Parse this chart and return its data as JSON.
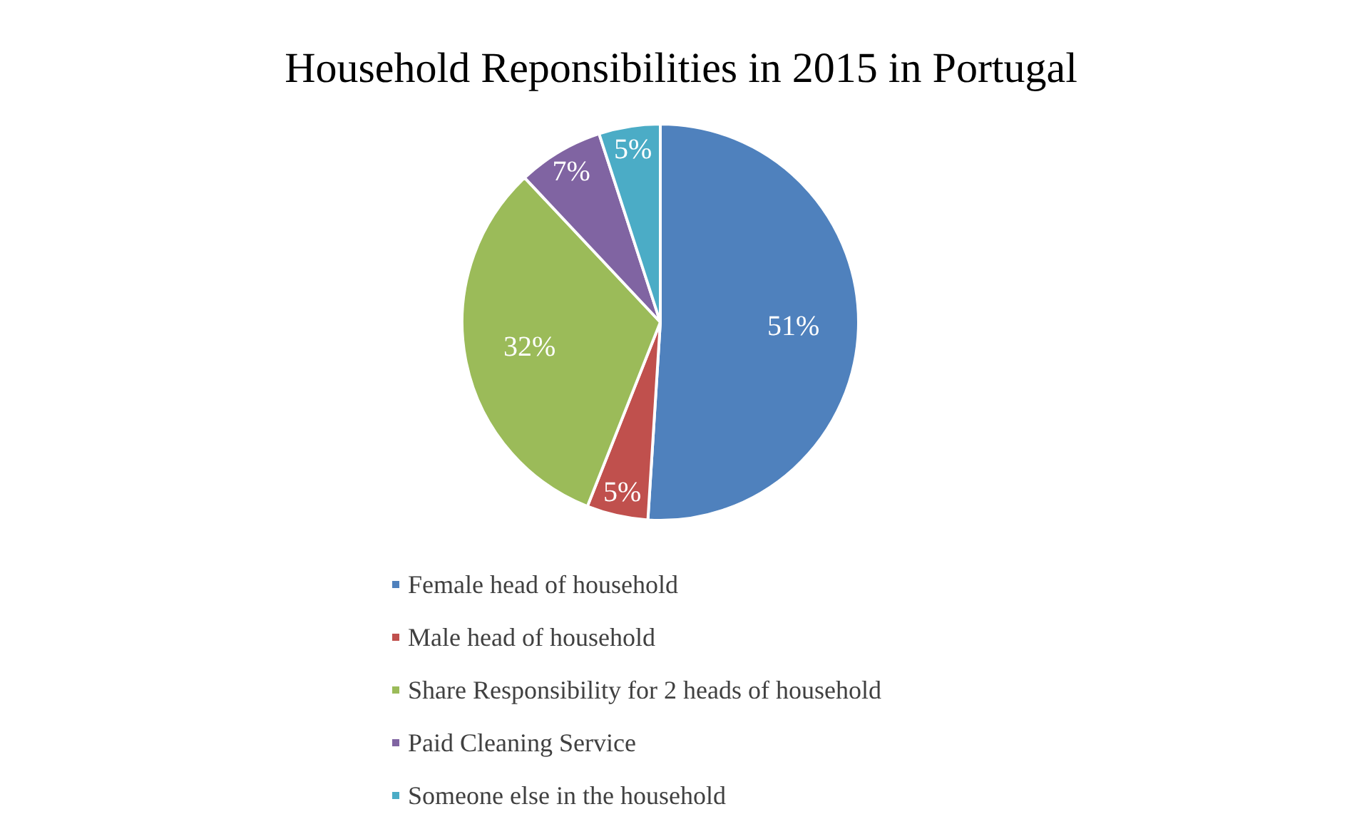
{
  "chart_data": {
    "type": "pie",
    "title": "Household Reponsibilities in 2015 in Portugal",
    "categories": [
      "Female head of household",
      "Male head of household",
      "Share Responsibility for 2 heads of household",
      "Paid Cleaning Service",
      "Someone else in the household"
    ],
    "values": [
      51,
      5,
      32,
      7,
      5
    ],
    "colors": [
      "#4f81bd",
      "#c0504d",
      "#9bbb59",
      "#8064a2",
      "#4bacc6"
    ],
    "value_labels": [
      "51%",
      "5%",
      "32%",
      "7%",
      "5%"
    ],
    "legend": "bottom"
  }
}
